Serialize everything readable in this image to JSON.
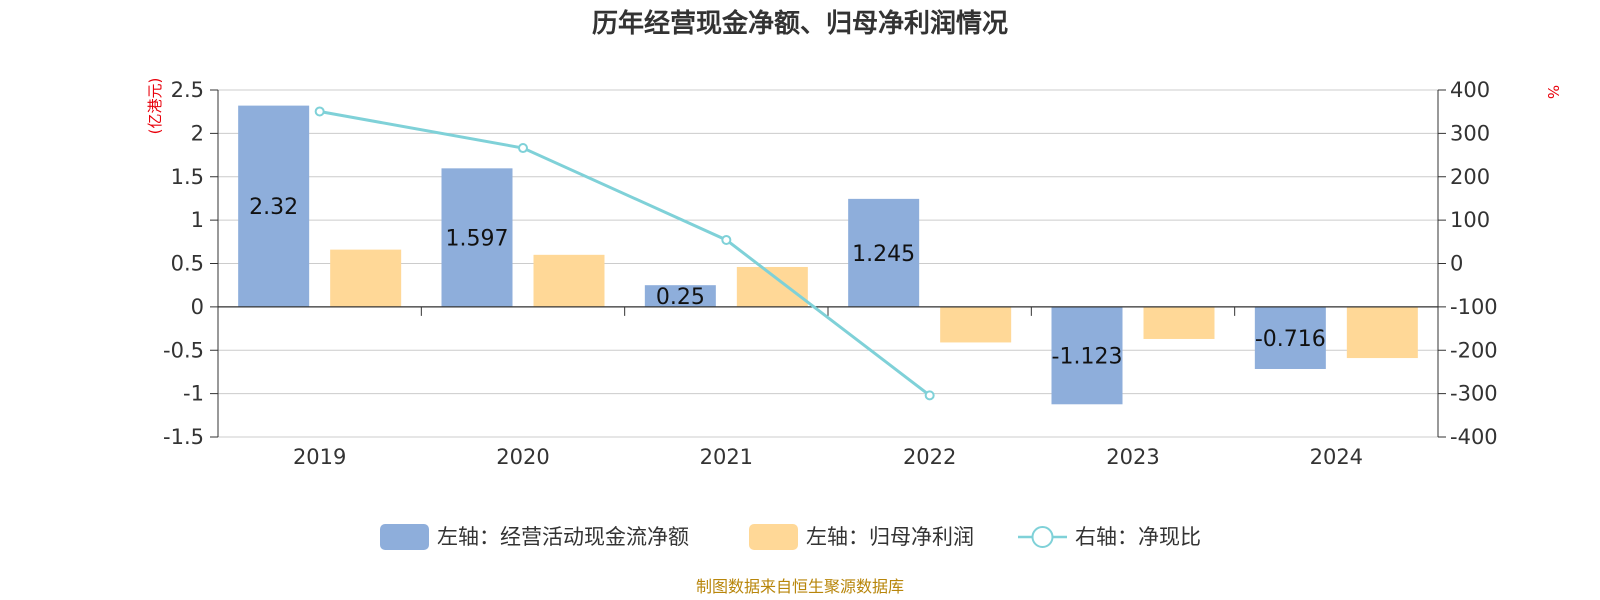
{
  "chart_data": {
    "type": "bar",
    "title": "历年经营现金净额、归母净利润情况",
    "categories": [
      "2019",
      "2020",
      "2021",
      "2022",
      "2023",
      "2024"
    ],
    "left_axis": {
      "unit": "(亿港元)",
      "ylim": [
        -1.5,
        2.5
      ],
      "ticks": [
        "2.5",
        "2",
        "1.5",
        "1",
        "0.5",
        "0",
        "-0.5",
        "-1",
        "-1.5"
      ]
    },
    "right_axis": {
      "unit": "%",
      "ylim": [
        -400,
        400
      ],
      "ticks": [
        "400",
        "300",
        "200",
        "100",
        "0",
        "-100",
        "-200",
        "-300",
        "-400"
      ]
    },
    "series": [
      {
        "name": "左轴：经营活动现金流净额",
        "type": "bar",
        "axis": "left",
        "color": "#8eaedb",
        "values": [
          2.32,
          1.597,
          0.25,
          1.245,
          -1.123,
          -0.716
        ],
        "labels": [
          "2.32",
          "1.597",
          "0.25",
          "1.245",
          "-1.123",
          "-0.716"
        ]
      },
      {
        "name": "左轴：归母净利润",
        "type": "bar",
        "axis": "left",
        "color": "#ffd897",
        "values": [
          0.66,
          0.6,
          0.46,
          -0.41,
          -0.37,
          -0.59
        ]
      },
      {
        "name": "右轴：净现比",
        "type": "line",
        "axis": "right",
        "color": "#7fd1d8",
        "values": [
          350.5,
          266.2,
          54.3,
          -304.0,
          null,
          null
        ]
      }
    ],
    "grid": true,
    "legend_position": "bottom",
    "source": "制图数据来自恒生聚源数据库"
  }
}
